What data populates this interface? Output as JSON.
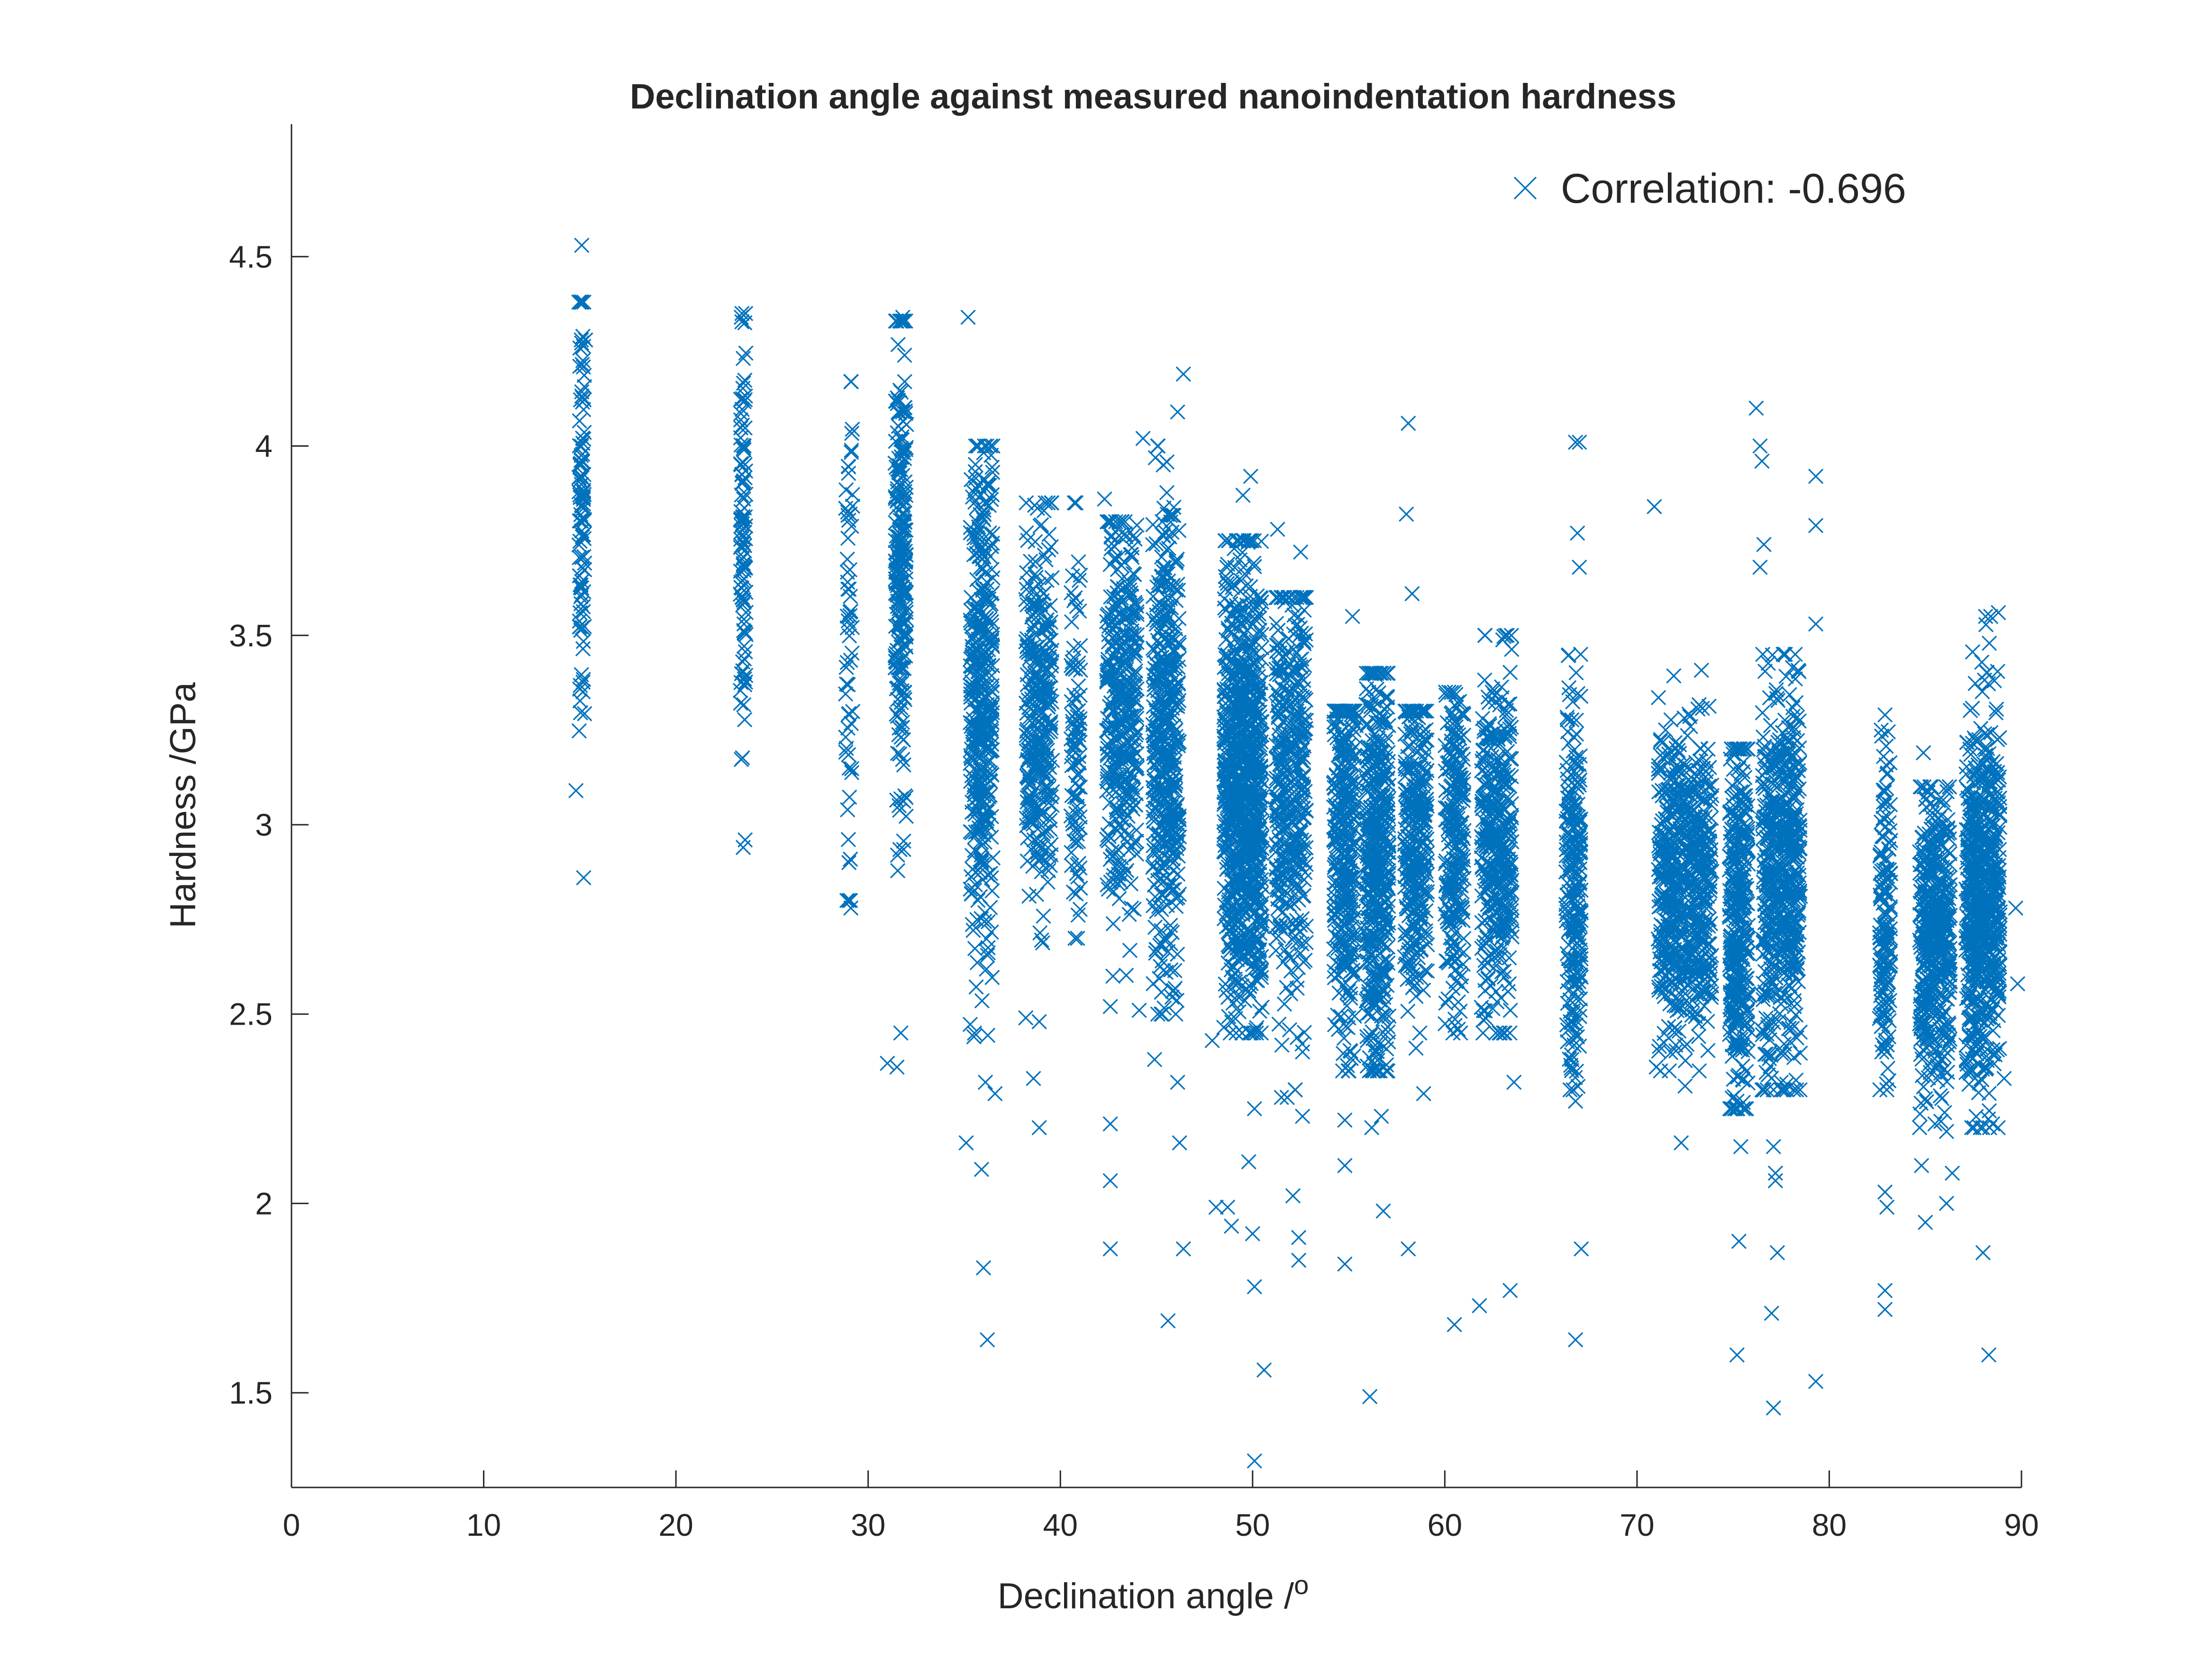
{
  "chart_data": {
    "type": "scatter",
    "title": "Declination angle against measured nanoindentation hardness",
    "xlabel": "Declination angle /",
    "xlabel_superscript": "o",
    "ylabel": "Hardness /GPa",
    "xlim": [
      0,
      90
    ],
    "ylim": [
      1.25,
      4.85
    ],
    "xticks": [
      0,
      10,
      20,
      30,
      40,
      50,
      60,
      70,
      80,
      90
    ],
    "yticks": [
      1.5,
      2,
      2.5,
      3,
      3.5,
      4,
      4.5
    ],
    "xtick_labels": [
      "0",
      "10",
      "20",
      "30",
      "40",
      "50",
      "60",
      "70",
      "80",
      "90"
    ],
    "ytick_labels": [
      "1.5",
      "2",
      "2.5",
      "3",
      "3.5",
      "4",
      "4.5"
    ],
    "grid": false,
    "legend": {
      "position": "top-right",
      "entries": [
        "Correlation: -0.696"
      ]
    },
    "marker": "x",
    "color": "#0072BD",
    "clusters": [
      {
        "angle": 15.1,
        "spread": 0.15,
        "n": 110,
        "mean": 3.85,
        "sd": 0.3,
        "lo": 2.84,
        "hi": 4.38
      },
      {
        "angle": 23.5,
        "spread": 0.15,
        "n": 110,
        "mean": 3.75,
        "sd": 0.32,
        "lo": 2.82,
        "hi": 4.35
      },
      {
        "angle": 29.0,
        "spread": 0.2,
        "n": 60,
        "mean": 3.5,
        "sd": 0.38,
        "lo": 2.8,
        "hi": 4.17
      },
      {
        "angle": 31.7,
        "spread": 0.3,
        "n": 260,
        "mean": 3.65,
        "sd": 0.3,
        "lo": 2.35,
        "hi": 4.33
      },
      {
        "angle": 35.9,
        "spread": 0.6,
        "n": 420,
        "mean": 3.3,
        "sd": 0.32,
        "lo": 2.3,
        "hi": 4.0
      },
      {
        "angle": 38.9,
        "spread": 0.7,
        "n": 320,
        "mean": 3.3,
        "sd": 0.25,
        "lo": 2.5,
        "hi": 3.85
      },
      {
        "angle": 40.8,
        "spread": 0.25,
        "n": 100,
        "mean": 3.25,
        "sd": 0.28,
        "lo": 2.7,
        "hi": 3.85
      },
      {
        "angle": 43.2,
        "spread": 0.8,
        "n": 380,
        "mean": 3.3,
        "sd": 0.25,
        "lo": 2.6,
        "hi": 3.8
      },
      {
        "angle": 45.5,
        "spread": 0.7,
        "n": 460,
        "mean": 3.2,
        "sd": 0.32,
        "lo": 2.5,
        "hi": 4.0
      },
      {
        "angle": 49.5,
        "spread": 1.0,
        "n": 900,
        "mean": 3.1,
        "sd": 0.28,
        "lo": 2.45,
        "hi": 3.75
      },
      {
        "angle": 52.0,
        "spread": 0.8,
        "n": 400,
        "mean": 3.1,
        "sd": 0.3,
        "lo": 2.3,
        "hi": 3.6
      },
      {
        "angle": 54.8,
        "spread": 0.6,
        "n": 350,
        "mean": 2.95,
        "sd": 0.25,
        "lo": 2.35,
        "hi": 3.3
      },
      {
        "angle": 56.5,
        "spread": 0.6,
        "n": 450,
        "mean": 2.9,
        "sd": 0.27,
        "lo": 2.35,
        "hi": 3.4
      },
      {
        "angle": 58.5,
        "spread": 0.6,
        "n": 300,
        "mean": 2.95,
        "sd": 0.2,
        "lo": 2.45,
        "hi": 3.3
      },
      {
        "angle": 60.5,
        "spread": 0.5,
        "n": 250,
        "mean": 2.95,
        "sd": 0.22,
        "lo": 2.45,
        "hi": 3.35
      },
      {
        "angle": 62.7,
        "spread": 0.8,
        "n": 380,
        "mean": 2.95,
        "sd": 0.22,
        "lo": 2.45,
        "hi": 3.5
      },
      {
        "angle": 66.7,
        "spread": 0.4,
        "n": 240,
        "mean": 2.85,
        "sd": 0.25,
        "lo": 2.3,
        "hi": 3.45
      },
      {
        "angle": 72.5,
        "spread": 1.4,
        "n": 650,
        "mean": 2.85,
        "sd": 0.2,
        "lo": 2.35,
        "hi": 3.45
      },
      {
        "angle": 75.3,
        "spread": 0.5,
        "n": 360,
        "mean": 2.75,
        "sd": 0.24,
        "lo": 2.25,
        "hi": 3.2
      },
      {
        "angle": 77.5,
        "spread": 1.0,
        "n": 560,
        "mean": 2.85,
        "sd": 0.25,
        "lo": 2.3,
        "hi": 3.45
      },
      {
        "angle": 82.9,
        "spread": 0.3,
        "n": 160,
        "mean": 2.75,
        "sd": 0.2,
        "lo": 2.3,
        "hi": 3.25
      },
      {
        "angle": 85.5,
        "spread": 0.8,
        "n": 450,
        "mean": 2.7,
        "sd": 0.2,
        "lo": 2.2,
        "hi": 3.1
      },
      {
        "angle": 88.0,
        "spread": 0.9,
        "n": 650,
        "mean": 2.8,
        "sd": 0.24,
        "lo": 2.2,
        "hi": 3.55
      }
    ],
    "outliers": [
      [
        14.8,
        3.09
      ],
      [
        15.1,
        4.53
      ],
      [
        15.2,
        2.86
      ],
      [
        15.3,
        4.28
      ],
      [
        23.5,
        2.94
      ],
      [
        23.6,
        2.96
      ],
      [
        23.4,
        4.34
      ],
      [
        29.1,
        4.17
      ],
      [
        29.0,
        2.9
      ],
      [
        29.1,
        2.78
      ],
      [
        31.0,
        2.37
      ],
      [
        31.5,
        2.36
      ],
      [
        31.7,
        2.45
      ],
      [
        31.8,
        4.34
      ],
      [
        31.9,
        4.17
      ],
      [
        35.2,
        4.34
      ],
      [
        35.1,
        2.16
      ],
      [
        35.5,
        2.44
      ],
      [
        35.9,
        2.09
      ],
      [
        36.0,
        1.83
      ],
      [
        36.2,
        1.64
      ],
      [
        36.1,
        2.32
      ],
      [
        36.6,
        2.29
      ],
      [
        38.2,
        2.49
      ],
      [
        38.6,
        2.33
      ],
      [
        38.9,
        2.2
      ],
      [
        38.9,
        2.48
      ],
      [
        42.6,
        2.21
      ],
      [
        42.6,
        2.06
      ],
      [
        42.6,
        1.88
      ],
      [
        42.6,
        2.52
      ],
      [
        42.3,
        3.86
      ],
      [
        44.1,
        2.51
      ],
      [
        44.3,
        4.02
      ],
      [
        44.9,
        2.38
      ],
      [
        45.6,
        1.69
      ],
      [
        46.1,
        2.32
      ],
      [
        46.2,
        2.16
      ],
      [
        46.4,
        1.88
      ],
      [
        46.4,
        4.19
      ],
      [
        46.1,
        4.09
      ],
      [
        47.9,
        2.43
      ],
      [
        48.1,
        1.99
      ],
      [
        48.7,
        1.99
      ],
      [
        48.9,
        1.94
      ],
      [
        49.5,
        3.87
      ],
      [
        49.9,
        3.92
      ],
      [
        49.8,
        2.11
      ],
      [
        50.1,
        2.25
      ],
      [
        50.0,
        1.92
      ],
      [
        50.1,
        1.78
      ],
      [
        50.1,
        1.32
      ],
      [
        50.6,
        1.56
      ],
      [
        50.2,
        2.45
      ],
      [
        51.5,
        2.28
      ],
      [
        51.8,
        2.28
      ],
      [
        52.1,
        2.02
      ],
      [
        52.4,
        1.91
      ],
      [
        52.4,
        1.85
      ],
      [
        52.6,
        2.4
      ],
      [
        52.6,
        2.23
      ],
      [
        51.3,
        3.78
      ],
      [
        52.5,
        3.72
      ],
      [
        54.8,
        2.22
      ],
      [
        54.8,
        1.84
      ],
      [
        54.8,
        2.1
      ],
      [
        55.2,
        3.55
      ],
      [
        56.1,
        1.49
      ],
      [
        56.2,
        2.2
      ],
      [
        56.8,
        1.98
      ],
      [
        56.7,
        2.23
      ],
      [
        58.1,
        4.06
      ],
      [
        58.0,
        3.82
      ],
      [
        58.1,
        1.88
      ],
      [
        58.5,
        2.41
      ],
      [
        58.9,
        2.29
      ],
      [
        58.3,
        3.61
      ],
      [
        60.5,
        1.68
      ],
      [
        60.7,
        2.46
      ],
      [
        61.8,
        1.73
      ],
      [
        63.4,
        1.77
      ],
      [
        63.6,
        2.32
      ],
      [
        66.8,
        4.01
      ],
      [
        67.0,
        4.01
      ],
      [
        66.8,
        1.64
      ],
      [
        67.1,
        1.88
      ],
      [
        66.8,
        2.27
      ],
      [
        66.9,
        3.77
      ],
      [
        67.0,
        3.68
      ],
      [
        70.9,
        3.84
      ],
      [
        71.0,
        2.36
      ],
      [
        72.3,
        2.16
      ],
      [
        72.5,
        2.31
      ],
      [
        72.6,
        2.42
      ],
      [
        75.2,
        1.6
      ],
      [
        75.3,
        1.9
      ],
      [
        75.4,
        2.15
      ],
      [
        75.2,
        2.27
      ],
      [
        76.2,
        4.1
      ],
      [
        76.4,
        4.0
      ],
      [
        76.5,
        3.96
      ],
      [
        76.6,
        3.74
      ],
      [
        76.4,
        3.68
      ],
      [
        77.1,
        1.46
      ],
      [
        77.0,
        1.71
      ],
      [
        77.3,
        1.87
      ],
      [
        77.1,
        2.15
      ],
      [
        77.2,
        2.08
      ],
      [
        77.2,
        2.06
      ],
      [
        77.5,
        2.32
      ],
      [
        79.3,
        3.92
      ],
      [
        79.3,
        3.79
      ],
      [
        79.3,
        3.53
      ],
      [
        79.3,
        1.53
      ],
      [
        82.9,
        1.72
      ],
      [
        82.9,
        1.77
      ],
      [
        83.0,
        1.99
      ],
      [
        82.9,
        2.03
      ],
      [
        82.9,
        3.29
      ],
      [
        83.1,
        2.44
      ],
      [
        85.0,
        1.95
      ],
      [
        84.8,
        2.1
      ],
      [
        84.7,
        2.2
      ],
      [
        84.9,
        3.19
      ],
      [
        85.5,
        2.21
      ],
      [
        86.0,
        2.24
      ],
      [
        86.1,
        2.0
      ],
      [
        86.1,
        2.19
      ],
      [
        86.4,
        2.08
      ],
      [
        88.0,
        1.87
      ],
      [
        88.3,
        1.6
      ],
      [
        88.4,
        3.55
      ],
      [
        88.8,
        3.56
      ],
      [
        88.5,
        2.21
      ],
      [
        89.1,
        2.33
      ],
      [
        89.7,
        2.78
      ],
      [
        89.8,
        2.58
      ]
    ]
  }
}
